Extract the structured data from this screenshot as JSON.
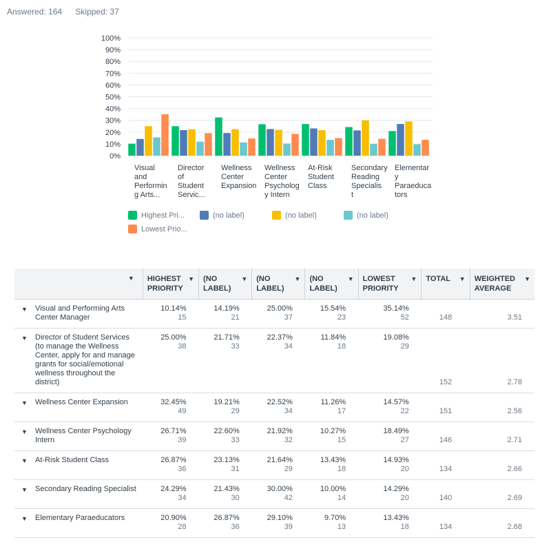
{
  "summary": {
    "answered": "Answered: 164",
    "skipped": "Skipped: 37"
  },
  "colors": {
    "c1": "#00bf6f",
    "c2": "#507cb6",
    "c3": "#f9be00",
    "c4": "#6bc8cd",
    "c5": "#ff8b4f"
  },
  "chart_data": {
    "type": "bar",
    "categories": [
      [
        "Visual",
        "and",
        "Performin",
        "g Arts..."
      ],
      [
        "Director",
        "of",
        "Student",
        "Servic..."
      ],
      [
        "Wellness",
        "Center",
        "Expansion"
      ],
      [
        "Wellness",
        "Center",
        "Psycholog",
        "y Intern"
      ],
      [
        "At-Risk",
        "Student",
        "Class"
      ],
      [
        "Secondary",
        "Reading",
        "Specialis",
        "t"
      ],
      [
        "Elementar",
        "y",
        "Paraeduca",
        "tors"
      ]
    ],
    "ylim": [
      0,
      100
    ],
    "yticks": [
      "0%",
      "10%",
      "20%",
      "30%",
      "40%",
      "50%",
      "60%",
      "70%",
      "80%",
      "90%",
      "100%"
    ],
    "series": [
      {
        "name": "Highest Pri...",
        "color": "#00bf6f",
        "values": [
          10.14,
          25.0,
          32.45,
          26.71,
          26.87,
          24.29,
          20.9
        ]
      },
      {
        "name": "(no label)",
        "color": "#507cb6",
        "values": [
          14.19,
          21.71,
          19.21,
          22.6,
          23.13,
          21.43,
          26.87
        ]
      },
      {
        "name": "(no label)",
        "color": "#f9be00",
        "values": [
          25.0,
          22.37,
          22.52,
          21.92,
          21.64,
          30.0,
          29.1
        ]
      },
      {
        "name": "(no label)",
        "color": "#6bc8cd",
        "values": [
          15.54,
          11.84,
          11.26,
          10.27,
          13.43,
          10.0,
          9.7
        ]
      },
      {
        "name": "Lowest Prio...",
        "color": "#ff8b4f",
        "values": [
          35.14,
          19.08,
          14.57,
          18.49,
          14.93,
          14.29,
          13.43
        ]
      }
    ],
    "grid": true,
    "legend": "bottom"
  },
  "table": {
    "headers": [
      {
        "label": "HIGHEST PRIORITY",
        "lines": [
          "HIGHEST",
          "PRIORITY"
        ]
      },
      {
        "label": "(NO LABEL)",
        "lines": [
          "(NO",
          "LABEL)"
        ]
      },
      {
        "label": "(NO LABEL)",
        "lines": [
          "(NO",
          "LABEL)"
        ]
      },
      {
        "label": "(NO LABEL)",
        "lines": [
          "(NO",
          "LABEL)"
        ]
      },
      {
        "label": "LOWEST PRIORITY",
        "lines": [
          "LOWEST",
          "PRIORITY"
        ]
      },
      {
        "label": "TOTAL",
        "lines": [
          "TOTAL"
        ]
      },
      {
        "label": "WEIGHTED AVERAGE",
        "lines": [
          "WEIGHTED",
          "AVERAGE"
        ]
      }
    ],
    "rows": [
      {
        "name": "Visual and Performing Arts Center Manager",
        "cells": [
          [
            "10.14%",
            "15"
          ],
          [
            "14.19%",
            "21"
          ],
          [
            "25.00%",
            "37"
          ],
          [
            "15.54%",
            "23"
          ],
          [
            "35.14%",
            "52"
          ]
        ],
        "total": "148",
        "wavg": "3.51"
      },
      {
        "name": "Director of Student Services (to manage the Wellness Center, apply for and manage grants for social/emotional wellness throughout the district)",
        "cells": [
          [
            "25.00%",
            "38"
          ],
          [
            "21.71%",
            "33"
          ],
          [
            "22.37%",
            "34"
          ],
          [
            "11.84%",
            "18"
          ],
          [
            "19.08%",
            "29"
          ]
        ],
        "total": "152",
        "wavg": "2.78"
      },
      {
        "name": "Wellness Center Expansion",
        "cells": [
          [
            "32.45%",
            "49"
          ],
          [
            "19.21%",
            "29"
          ],
          [
            "22.52%",
            "34"
          ],
          [
            "11.26%",
            "17"
          ],
          [
            "14.57%",
            "22"
          ]
        ],
        "total": "151",
        "wavg": "2.56"
      },
      {
        "name": "Wellness Center Psychology Intern",
        "cells": [
          [
            "26.71%",
            "39"
          ],
          [
            "22.60%",
            "33"
          ],
          [
            "21.92%",
            "32"
          ],
          [
            "10.27%",
            "15"
          ],
          [
            "18.49%",
            "27"
          ]
        ],
        "total": "146",
        "wavg": "2.71"
      },
      {
        "name": "At-Risk Student Class",
        "cells": [
          [
            "26.87%",
            "36"
          ],
          [
            "23.13%",
            "31"
          ],
          [
            "21.64%",
            "29"
          ],
          [
            "13.43%",
            "18"
          ],
          [
            "14.93%",
            "20"
          ]
        ],
        "total": "134",
        "wavg": "2.66"
      },
      {
        "name": "Secondary Reading Specialist",
        "cells": [
          [
            "24.29%",
            "34"
          ],
          [
            "21.43%",
            "30"
          ],
          [
            "30.00%",
            "42"
          ],
          [
            "10.00%",
            "14"
          ],
          [
            "14.29%",
            "20"
          ]
        ],
        "total": "140",
        "wavg": "2.69"
      },
      {
        "name": "Elementary Paraeducators",
        "cells": [
          [
            "20.90%",
            "28"
          ],
          [
            "26.87%",
            "36"
          ],
          [
            "29.10%",
            "39"
          ],
          [
            "9.70%",
            "13"
          ],
          [
            "13.43%",
            "18"
          ]
        ],
        "total": "134",
        "wavg": "2.68"
      }
    ]
  }
}
